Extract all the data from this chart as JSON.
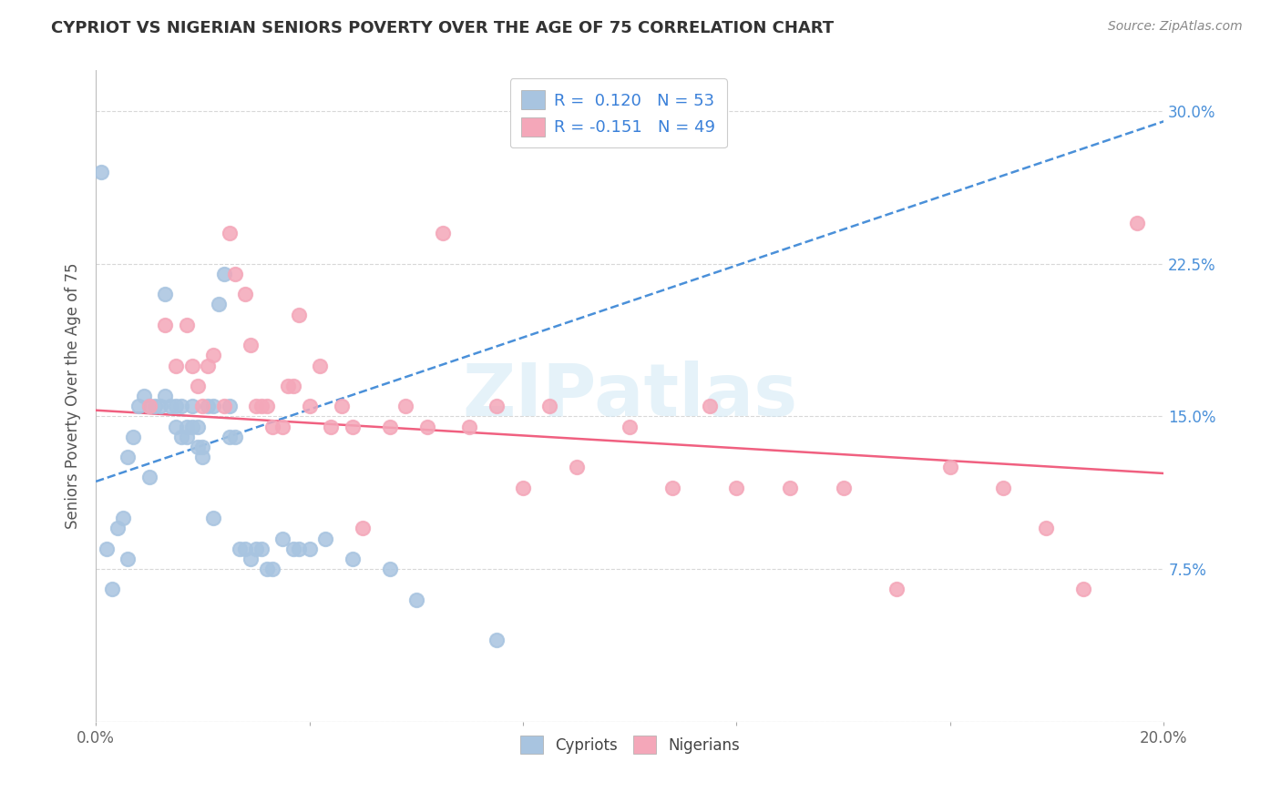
{
  "title": "CYPRIOT VS NIGERIAN SENIORS POVERTY OVER THE AGE OF 75 CORRELATION CHART",
  "source": "Source: ZipAtlas.com",
  "ylabel": "Seniors Poverty Over the Age of 75",
  "xlim": [
    0.0,
    0.2
  ],
  "ylim": [
    0.0,
    0.32
  ],
  "xticks": [
    0.0,
    0.04,
    0.08,
    0.12,
    0.16,
    0.2
  ],
  "xticklabels": [
    "0.0%",
    "",
    "",
    "",
    "",
    "20.0%"
  ],
  "yticks": [
    0.0,
    0.075,
    0.15,
    0.225,
    0.3
  ],
  "yticklabels": [
    "",
    "7.5%",
    "15.0%",
    "22.5%",
    "30.0%"
  ],
  "cypriot_color": "#a8c4e0",
  "nigerian_color": "#f4a7b9",
  "cypriot_line_color": "#4a90d9",
  "nigerian_line_color": "#f06080",
  "cypriot_R": 0.12,
  "cypriot_N": 53,
  "nigerian_R": -0.151,
  "nigerian_N": 49,
  "legend_color": "#3a80d9",
  "watermark": "ZIPatlas",
  "watermark_color": "#d0e8f5",
  "cypriot_x": [
    0.001,
    0.002,
    0.003,
    0.004,
    0.005,
    0.006,
    0.006,
    0.007,
    0.008,
    0.009,
    0.01,
    0.01,
    0.011,
    0.012,
    0.013,
    0.013,
    0.014,
    0.015,
    0.015,
    0.016,
    0.016,
    0.017,
    0.017,
    0.018,
    0.018,
    0.019,
    0.019,
    0.02,
    0.02,
    0.021,
    0.022,
    0.022,
    0.023,
    0.024,
    0.025,
    0.025,
    0.026,
    0.027,
    0.028,
    0.029,
    0.03,
    0.031,
    0.032,
    0.033,
    0.035,
    0.037,
    0.038,
    0.04,
    0.043,
    0.048,
    0.055,
    0.06,
    0.075
  ],
  "cypriot_y": [
    0.27,
    0.085,
    0.065,
    0.095,
    0.1,
    0.08,
    0.13,
    0.14,
    0.155,
    0.16,
    0.155,
    0.12,
    0.155,
    0.155,
    0.16,
    0.21,
    0.155,
    0.155,
    0.145,
    0.14,
    0.155,
    0.145,
    0.14,
    0.145,
    0.155,
    0.145,
    0.135,
    0.13,
    0.135,
    0.155,
    0.1,
    0.155,
    0.205,
    0.22,
    0.155,
    0.14,
    0.14,
    0.085,
    0.085,
    0.08,
    0.085,
    0.085,
    0.075,
    0.075,
    0.09,
    0.085,
    0.085,
    0.085,
    0.09,
    0.08,
    0.075,
    0.06,
    0.04
  ],
  "nigerian_x": [
    0.01,
    0.013,
    0.015,
    0.017,
    0.018,
    0.019,
    0.02,
    0.021,
    0.022,
    0.024,
    0.025,
    0.026,
    0.028,
    0.029,
    0.03,
    0.031,
    0.032,
    0.033,
    0.035,
    0.036,
    0.037,
    0.038,
    0.04,
    0.042,
    0.044,
    0.046,
    0.048,
    0.05,
    0.055,
    0.058,
    0.062,
    0.065,
    0.07,
    0.075,
    0.08,
    0.085,
    0.09,
    0.1,
    0.108,
    0.115,
    0.12,
    0.13,
    0.14,
    0.15,
    0.16,
    0.17,
    0.178,
    0.185,
    0.195
  ],
  "nigerian_y": [
    0.155,
    0.195,
    0.175,
    0.195,
    0.175,
    0.165,
    0.155,
    0.175,
    0.18,
    0.155,
    0.24,
    0.22,
    0.21,
    0.185,
    0.155,
    0.155,
    0.155,
    0.145,
    0.145,
    0.165,
    0.165,
    0.2,
    0.155,
    0.175,
    0.145,
    0.155,
    0.145,
    0.095,
    0.145,
    0.155,
    0.145,
    0.24,
    0.145,
    0.155,
    0.115,
    0.155,
    0.125,
    0.145,
    0.115,
    0.155,
    0.115,
    0.115,
    0.115,
    0.065,
    0.125,
    0.115,
    0.095,
    0.065,
    0.245
  ],
  "cypriot_line_x0": 0.0,
  "cypriot_line_x1": 0.2,
  "cypriot_line_y0": 0.118,
  "cypriot_line_y1": 0.295,
  "nigerian_line_x0": 0.0,
  "nigerian_line_x1": 0.2,
  "nigerian_line_y0": 0.153,
  "nigerian_line_y1": 0.122
}
